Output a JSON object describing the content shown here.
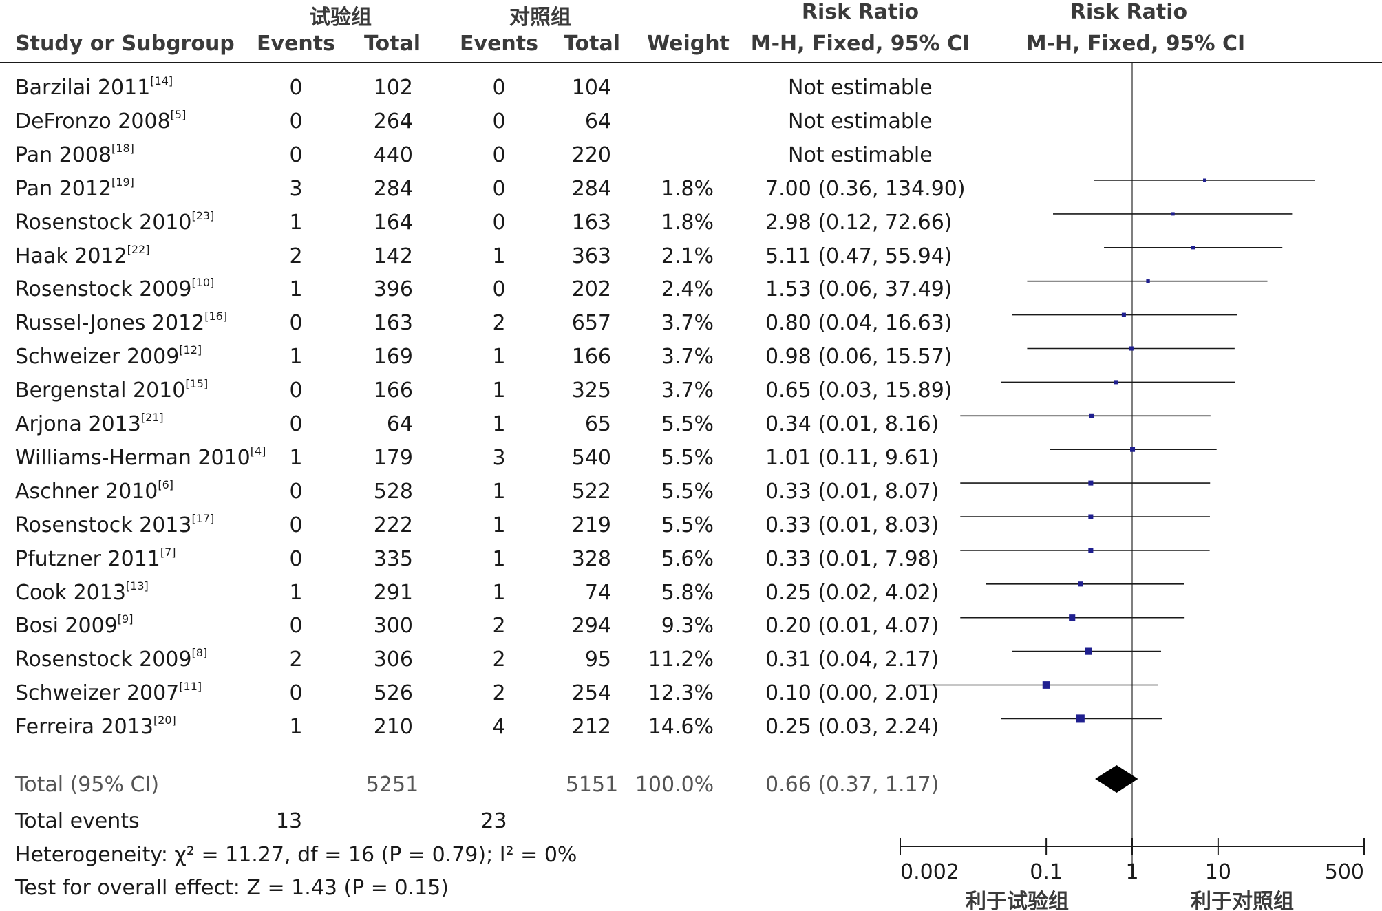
{
  "header": {
    "group1": "试验组",
    "group2": "对照组",
    "rr_title_left": "Risk Ratio",
    "rr_title_right": "Risk Ratio",
    "study_col": "Study or Subgroup",
    "events1": "Events",
    "total1": "Total",
    "events2": "Events",
    "total2": "Total",
    "weight": "Weight",
    "method_left": "M-H, Fixed, 95% CI",
    "method_right": "M-H, Fixed, 95% CI"
  },
  "rows": [
    {
      "study": "Barzilai 2011",
      "ref": "[14]",
      "e1": "0",
      "t1": "102",
      "e2": "0",
      "t2": "104",
      "weight": "",
      "ci": "Not estimable"
    },
    {
      "study": "DeFronzo 2008",
      "ref": "[5]",
      "e1": "0",
      "t1": "264",
      "e2": "0",
      "t2": "64",
      "weight": "",
      "ci": "Not estimable"
    },
    {
      "study": "Pan 2008",
      "ref": "[18]",
      "e1": "0",
      "t1": "440",
      "e2": "0",
      "t2": "220",
      "weight": "",
      "ci": "Not estimable"
    },
    {
      "study": "Pan 2012",
      "ref": "[19]",
      "e1": "3",
      "t1": "284",
      "e2": "0",
      "t2": "284",
      "weight": "1.8%",
      "ci": "7.00 (0.36, 134.90)"
    },
    {
      "study": "Rosenstock 2010",
      "ref": "[23]",
      "e1": "1",
      "t1": "164",
      "e2": "0",
      "t2": "163",
      "weight": "1.8%",
      "ci": "2.98 (0.12, 72.66)"
    },
    {
      "study": "Haak 2012",
      "ref": "[22]",
      "e1": "2",
      "t1": "142",
      "e2": "1",
      "t2": "363",
      "weight": "2.1%",
      "ci": "5.11 (0.47, 55.94)"
    },
    {
      "study": "Rosenstock 2009",
      "ref": "[10]",
      "e1": "1",
      "t1": "396",
      "e2": "0",
      "t2": "202",
      "weight": "2.4%",
      "ci": "1.53 (0.06, 37.49)"
    },
    {
      "study": "Russel-Jones 2012",
      "ref": "[16]",
      "e1": "0",
      "t1": "163",
      "e2": "2",
      "t2": "657",
      "weight": "3.7%",
      "ci": "0.80 (0.04, 16.63)"
    },
    {
      "study": "Schweizer 2009",
      "ref": "[12]",
      "e1": "1",
      "t1": "169",
      "e2": "1",
      "t2": "166",
      "weight": "3.7%",
      "ci": "0.98 (0.06, 15.57)"
    },
    {
      "study": "Bergenstal 2010",
      "ref": "[15]",
      "e1": "0",
      "t1": "166",
      "e2": "1",
      "t2": "325",
      "weight": "3.7%",
      "ci": "0.65 (0.03, 15.89)"
    },
    {
      "study": "Arjona 2013",
      "ref": "[21]",
      "e1": "0",
      "t1": "64",
      "e2": "1",
      "t2": "65",
      "weight": "5.5%",
      "ci": "0.34 (0.01, 8.16)"
    },
    {
      "study": "Williams-Herman 2010",
      "ref": "[4]",
      "e1": "1",
      "t1": "179",
      "e2": "3",
      "t2": "540",
      "weight": "5.5%",
      "ci": "1.01 (0.11, 9.61)"
    },
    {
      "study": "Aschner 2010",
      "ref": "[6]",
      "e1": "0",
      "t1": "528",
      "e2": "1",
      "t2": "522",
      "weight": "5.5%",
      "ci": "0.33 (0.01, 8.07)"
    },
    {
      "study": "Rosenstock 2013",
      "ref": "[17]",
      "e1": "0",
      "t1": "222",
      "e2": "1",
      "t2": "219",
      "weight": "5.5%",
      "ci": "0.33 (0.01, 8.03)"
    },
    {
      "study": "Pfutzner 2011",
      "ref": "[7]",
      "e1": "0",
      "t1": "335",
      "e2": "1",
      "t2": "328",
      "weight": "5.6%",
      "ci": "0.33 (0.01, 7.98)"
    },
    {
      "study": "Cook 2013",
      "ref": "[13]",
      "e1": "1",
      "t1": "291",
      "e2": "1",
      "t2": "74",
      "weight": "5.8%",
      "ci": "0.25 (0.02, 4.02)"
    },
    {
      "study": "Bosi 2009",
      "ref": "[9]",
      "e1": "0",
      "t1": "300",
      "e2": "2",
      "t2": "294",
      "weight": "9.3%",
      "ci": "0.20 (0.01, 4.07)"
    },
    {
      "study": "Rosenstock 2009",
      "ref": "[8]",
      "e1": "2",
      "t1": "306",
      "e2": "2",
      "t2": "95",
      "weight": "11.2%",
      "ci": "0.31 (0.04, 2.17)"
    },
    {
      "study": "Schweizer 2007",
      "ref": "[11]",
      "e1": "0",
      "t1": "526",
      "e2": "2",
      "t2": "254",
      "weight": "12.3%",
      "ci": "0.10 (0.00, 2.01)"
    },
    {
      "study": "Ferreira 2013",
      "ref": "[20]",
      "e1": "1",
      "t1": "210",
      "e2": "4",
      "t2": "212",
      "weight": "14.6%",
      "ci": "0.25 (0.03, 2.24)"
    }
  ],
  "total": {
    "label": "Total (95% CI)",
    "t1": "5251",
    "t2": "5151",
    "weight": "100.0%",
    "ci": "0.66 (0.37, 1.17)"
  },
  "total_events": {
    "label": "Total events",
    "e1": "13",
    "e2": "23"
  },
  "heterogeneity": "Heterogeneity: χ² = 11.27, df = 16 (P = 0.79); I² = 0%",
  "overall_effect": "Test for overall effect: Z = 1.43 (P = 0.15)",
  "axis": {
    "ticks": [
      "0.002",
      "0.1",
      "1",
      "10",
      "500"
    ],
    "favours_left": "利于试验组",
    "favours_right": "利于对照组"
  },
  "colors": {
    "marker": "#1f1f8f",
    "line": "#1a1a1a",
    "diamond": "#000000"
  },
  "chart_data": {
    "type": "forest",
    "scale": "log",
    "xlim": [
      0.002,
      500
    ],
    "xticks": [
      0.002,
      0.1,
      1,
      10,
      500
    ],
    "null_line": 1,
    "studies": [
      {
        "name": "Pan 2012",
        "rr": 7.0,
        "lo": 0.36,
        "hi": 134.9,
        "weight": 1.8
      },
      {
        "name": "Rosenstock 2010",
        "rr": 2.98,
        "lo": 0.12,
        "hi": 72.66,
        "weight": 1.8
      },
      {
        "name": "Haak 2012",
        "rr": 5.11,
        "lo": 0.47,
        "hi": 55.94,
        "weight": 2.1
      },
      {
        "name": "Rosenstock 2009",
        "rr": 1.53,
        "lo": 0.06,
        "hi": 37.49,
        "weight": 2.4
      },
      {
        "name": "Russel-Jones 2012",
        "rr": 0.8,
        "lo": 0.04,
        "hi": 16.63,
        "weight": 3.7
      },
      {
        "name": "Schweizer 2009",
        "rr": 0.98,
        "lo": 0.06,
        "hi": 15.57,
        "weight": 3.7
      },
      {
        "name": "Bergenstal 2010",
        "rr": 0.65,
        "lo": 0.03,
        "hi": 15.89,
        "weight": 3.7
      },
      {
        "name": "Arjona 2013",
        "rr": 0.34,
        "lo": 0.01,
        "hi": 8.16,
        "weight": 5.5
      },
      {
        "name": "Williams-Herman 2010",
        "rr": 1.01,
        "lo": 0.11,
        "hi": 9.61,
        "weight": 5.5
      },
      {
        "name": "Aschner 2010",
        "rr": 0.33,
        "lo": 0.01,
        "hi": 8.07,
        "weight": 5.5
      },
      {
        "name": "Rosenstock 2013",
        "rr": 0.33,
        "lo": 0.01,
        "hi": 8.03,
        "weight": 5.5
      },
      {
        "name": "Pfutzner 2011",
        "rr": 0.33,
        "lo": 0.01,
        "hi": 7.98,
        "weight": 5.6
      },
      {
        "name": "Cook 2013",
        "rr": 0.25,
        "lo": 0.02,
        "hi": 4.02,
        "weight": 5.8
      },
      {
        "name": "Bosi 2009",
        "rr": 0.2,
        "lo": 0.01,
        "hi": 4.07,
        "weight": 9.3
      },
      {
        "name": "Rosenstock 2009",
        "rr": 0.31,
        "lo": 0.04,
        "hi": 2.17,
        "weight": 11.2
      },
      {
        "name": "Schweizer 2007",
        "rr": 0.1,
        "lo": 0.0,
        "hi": 2.01,
        "weight": 12.3
      },
      {
        "name": "Ferreira 2013",
        "rr": 0.25,
        "lo": 0.03,
        "hi": 2.24,
        "weight": 14.6
      }
    ],
    "pooled": {
      "rr": 0.66,
      "lo": 0.37,
      "hi": 1.17
    }
  }
}
